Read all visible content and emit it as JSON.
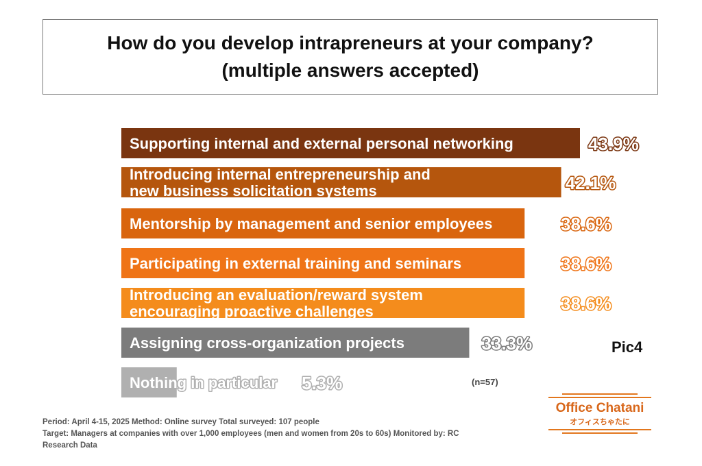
{
  "title": {
    "line1": "How do you develop intrapreneurs at your company?",
    "line2": "(multiple answers accepted)"
  },
  "chart_data": {
    "type": "bar",
    "orientation": "horizontal",
    "categories": [
      [
        "Supporting internal and external personal networking"
      ],
      [
        "Introducing internal entrepreneurship and",
        "new business solicitation systems"
      ],
      [
        "Mentorship by management and senior employees"
      ],
      [
        "Participating in external training and seminars"
      ],
      [
        "Introducing an evaluation/reward system",
        "encouraging proactive challenges"
      ],
      [
        "Assigning cross-organization projects"
      ],
      [
        "Nothing in particular"
      ]
    ],
    "values": [
      43.9,
      42.1,
      38.6,
      38.6,
      38.6,
      33.3,
      5.3
    ],
    "value_labels": [
      "43.9%",
      "42.1%",
      "38.6%",
      "38.6%",
      "38.6%",
      "33.3%",
      "5.3%"
    ],
    "colors": [
      "#7a3510",
      "#b5560d",
      "#d9650e",
      "#ef7417",
      "#f48c1c",
      "#7c7c7c",
      "#b0b0b0"
    ],
    "xlim": [
      0,
      43.9
    ],
    "grid": false
  },
  "pic_label": "Pic4",
  "n_label": "(n=57)",
  "footer": {
    "line1": "Period: April 4-15, 2025 Method: Online survey Total surveyed: 107 people",
    "line2": "Target: Managers at companies with over 1,000 employees (men and women from 20s to 60s) Monitored by: RC",
    "line3": "Research Data"
  },
  "logo": {
    "name": "Office Chatani",
    "sub": "オフィスちゃたに"
  }
}
